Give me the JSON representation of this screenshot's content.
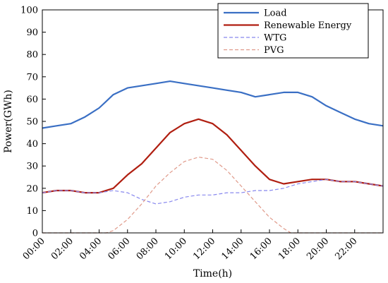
{
  "chart_data": {
    "type": "line",
    "title": "",
    "xlabel": "Time(h)",
    "ylabel": "Power(GWh)",
    "xlim": [
      0,
      24
    ],
    "ylim": [
      0,
      100
    ],
    "x_ticks": [
      0,
      2,
      4,
      6,
      8,
      10,
      12,
      14,
      16,
      18,
      20,
      22
    ],
    "x_tick_labels": [
      "00:00",
      "02:00",
      "04:00",
      "06:00",
      "08:00",
      "10:00",
      "12:00",
      "14:00",
      "16:00",
      "18:00",
      "20:00",
      "22:00"
    ],
    "y_ticks": [
      0,
      10,
      20,
      30,
      40,
      50,
      60,
      70,
      80,
      90,
      100
    ],
    "y_tick_labels": [
      "0",
      "10",
      "20",
      "30",
      "40",
      "50",
      "60",
      "70",
      "80",
      "90",
      "100"
    ],
    "grid": false,
    "legend_position": "top-right",
    "series": [
      {
        "name": "Load",
        "color": "#3a6fc4",
        "style": "solid",
        "x": [
          0,
          1,
          2,
          3,
          4,
          4.5,
          5,
          6,
          7,
          8,
          9,
          10,
          11,
          12,
          13,
          14,
          15,
          16,
          17,
          18,
          19,
          20,
          21,
          22,
          23,
          24
        ],
        "values": [
          47,
          48,
          49,
          52,
          56,
          59,
          62,
          65,
          66,
          67,
          68,
          67,
          66,
          65,
          64,
          63,
          61,
          62,
          63,
          63,
          61,
          57,
          54,
          51,
          49,
          48
        ]
      },
      {
        "name": "Renewable Energy",
        "color": "#b01e10",
        "style": "solid",
        "x": [
          0,
          1,
          2,
          3,
          4,
          5,
          6,
          7,
          8,
          9,
          10,
          11,
          12,
          13,
          14,
          15,
          16,
          17,
          18,
          19,
          20,
          21,
          22,
          23,
          24
        ],
        "values": [
          18,
          19,
          19,
          18,
          18,
          20,
          26,
          31,
          38,
          45,
          49,
          51,
          49,
          44,
          37,
          30,
          24,
          22,
          23,
          24,
          24,
          23,
          23,
          22,
          21
        ]
      },
      {
        "name": "WTG",
        "color": "#8888ee",
        "style": "dashed",
        "x": [
          0,
          1,
          2,
          3,
          4,
          5,
          6,
          7,
          8,
          9,
          10,
          11,
          12,
          13,
          14,
          15,
          16,
          17,
          18,
          19,
          20,
          21,
          22,
          23,
          24
        ],
        "values": [
          18,
          19,
          19,
          18,
          18,
          19,
          18,
          15,
          13,
          14,
          16,
          17,
          17,
          18,
          18,
          19,
          19,
          20,
          22,
          23,
          24,
          23,
          23,
          22,
          21
        ]
      },
      {
        "name": "PVG",
        "color": "#e09a8a",
        "style": "dashed",
        "x": [
          0,
          1,
          2,
          3,
          4,
          4.5,
          5,
          6,
          7,
          8,
          9,
          10,
          11,
          12,
          13,
          14,
          15,
          16,
          17,
          17.5,
          18,
          19,
          20,
          21,
          22,
          23,
          24
        ],
        "values": [
          0,
          0,
          0,
          0,
          0,
          0,
          1,
          6,
          13,
          21,
          27,
          32,
          34,
          33,
          28,
          21,
          14,
          7,
          2,
          0,
          0,
          0,
          0,
          0,
          0,
          0,
          0
        ]
      }
    ]
  }
}
